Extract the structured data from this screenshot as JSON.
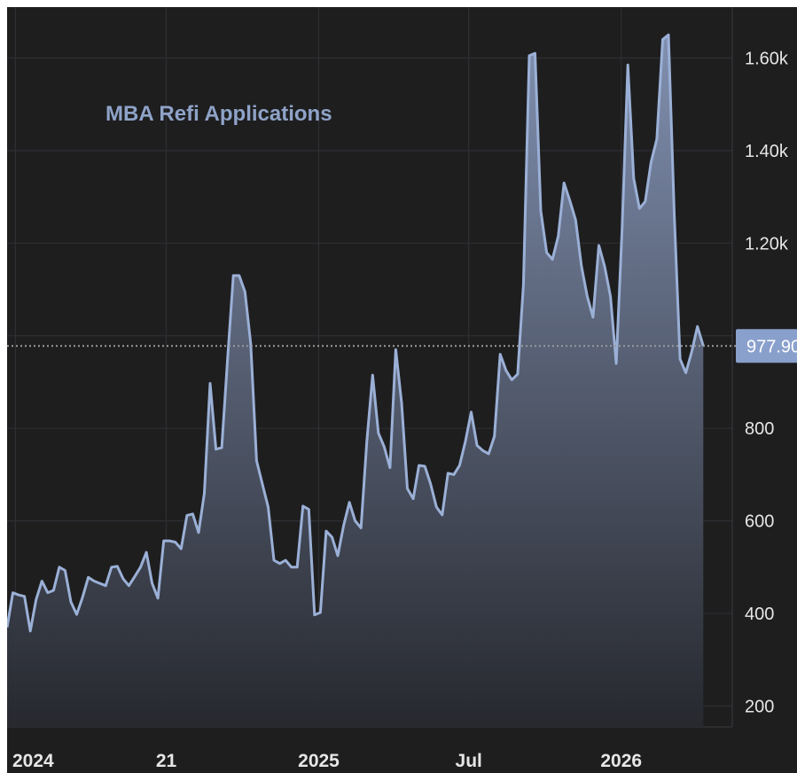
{
  "chart_data": {
    "type": "area",
    "title": "MBA Refi Applications",
    "xlabel": "",
    "ylabel": "",
    "x_range": [
      "2023-12-22",
      "2026-05-15"
    ],
    "ylim": [
      155,
      1710
    ],
    "y_ticks": [
      {
        "value": 200,
        "label": "200"
      },
      {
        "value": 400,
        "label": "400"
      },
      {
        "value": 600,
        "label": "600"
      },
      {
        "value": 800,
        "label": "800"
      },
      {
        "value": 1000,
        "label": ""
      },
      {
        "value": 1200,
        "label": "1.20k"
      },
      {
        "value": 1400,
        "label": "1.40k"
      },
      {
        "value": 1600,
        "label": "1.60k"
      }
    ],
    "x_ticks": [
      {
        "date": "2024-01-01",
        "label": "2024"
      },
      {
        "date": "2024-07-01",
        "label": "21"
      },
      {
        "date": "2025-01-01",
        "label": "2025"
      },
      {
        "date": "2025-07-01",
        "label": "Jul"
      },
      {
        "date": "2026-01-01",
        "label": "2026"
      }
    ],
    "grid": true,
    "last_value": 977.9,
    "last_value_label": "977.90",
    "line_color": "#9bb0d6",
    "fill_top_color": "#8696b8",
    "fill_bottom_color": "#27292f",
    "background": "#1e1e1f",
    "series": [
      {
        "points": [
          [
            "2023-12-22",
            370
          ],
          [
            "2023-12-29",
            445
          ],
          [
            "2024-01-05",
            440
          ],
          [
            "2024-01-12",
            437
          ],
          [
            "2024-01-19",
            362
          ],
          [
            "2024-01-26",
            430
          ],
          [
            "2024-02-02",
            470
          ],
          [
            "2024-02-09",
            445
          ],
          [
            "2024-02-16",
            450
          ],
          [
            "2024-02-23",
            500
          ],
          [
            "2024-03-01",
            493
          ],
          [
            "2024-03-08",
            425
          ],
          [
            "2024-03-15",
            398
          ],
          [
            "2024-03-22",
            435
          ],
          [
            "2024-03-29",
            478
          ],
          [
            "2024-04-05",
            470
          ],
          [
            "2024-04-12",
            465
          ],
          [
            "2024-04-19",
            460
          ],
          [
            "2024-04-26",
            500
          ],
          [
            "2024-05-03",
            502
          ],
          [
            "2024-05-10",
            475
          ],
          [
            "2024-05-17",
            460
          ],
          [
            "2024-05-24",
            480
          ],
          [
            "2024-05-31",
            500
          ],
          [
            "2024-06-07",
            532
          ],
          [
            "2024-06-14",
            465
          ],
          [
            "2024-06-21",
            433
          ],
          [
            "2024-06-28",
            557
          ],
          [
            "2024-07-05",
            557
          ],
          [
            "2024-07-12",
            554
          ],
          [
            "2024-07-19",
            540
          ],
          [
            "2024-07-26",
            612
          ],
          [
            "2024-08-02",
            615
          ],
          [
            "2024-08-09",
            575
          ],
          [
            "2024-08-16",
            660
          ],
          [
            "2024-08-23",
            897
          ],
          [
            "2024-08-30",
            755
          ],
          [
            "2024-09-06",
            758
          ],
          [
            "2024-09-13",
            950
          ],
          [
            "2024-09-20",
            1130
          ],
          [
            "2024-09-27",
            1130
          ],
          [
            "2024-10-04",
            1095
          ],
          [
            "2024-10-11",
            983
          ],
          [
            "2024-10-18",
            730
          ],
          [
            "2024-10-25",
            680
          ],
          [
            "2024-11-01",
            630
          ],
          [
            "2024-11-08",
            515
          ],
          [
            "2024-11-15",
            508
          ],
          [
            "2024-11-22",
            515
          ],
          [
            "2024-11-29",
            500
          ],
          [
            "2024-12-06",
            500
          ],
          [
            "2024-12-13",
            632
          ],
          [
            "2024-12-20",
            625
          ],
          [
            "2024-12-27",
            397
          ],
          [
            "2025-01-03",
            402
          ],
          [
            "2025-01-10",
            578
          ],
          [
            "2025-01-17",
            565
          ],
          [
            "2025-01-24",
            525
          ],
          [
            "2025-01-31",
            590
          ],
          [
            "2025-02-07",
            640
          ],
          [
            "2025-02-14",
            600
          ],
          [
            "2025-02-21",
            585
          ],
          [
            "2025-02-28",
            770
          ],
          [
            "2025-03-07",
            915
          ],
          [
            "2025-03-14",
            790
          ],
          [
            "2025-03-21",
            760
          ],
          [
            "2025-03-28",
            715
          ],
          [
            "2025-04-04",
            970
          ],
          [
            "2025-04-11",
            855
          ],
          [
            "2025-04-18",
            670
          ],
          [
            "2025-04-25",
            648
          ],
          [
            "2025-05-02",
            720
          ],
          [
            "2025-05-09",
            718
          ],
          [
            "2025-05-16",
            680
          ],
          [
            "2025-05-23",
            630
          ],
          [
            "2025-05-30",
            613
          ],
          [
            "2025-06-06",
            703
          ],
          [
            "2025-06-13",
            700
          ],
          [
            "2025-06-20",
            720
          ],
          [
            "2025-06-27",
            772
          ],
          [
            "2025-07-04",
            835
          ],
          [
            "2025-07-11",
            763
          ],
          [
            "2025-07-18",
            752
          ],
          [
            "2025-07-25",
            745
          ],
          [
            "2025-08-01",
            783
          ],
          [
            "2025-08-08",
            960
          ],
          [
            "2025-08-15",
            925
          ],
          [
            "2025-08-22",
            905
          ],
          [
            "2025-08-29",
            917
          ],
          [
            "2025-09-05",
            1110
          ],
          [
            "2025-09-12",
            1605
          ],
          [
            "2025-09-19",
            1610
          ],
          [
            "2025-09-26",
            1270
          ],
          [
            "2025-10-03",
            1180
          ],
          [
            "2025-10-10",
            1165
          ],
          [
            "2025-10-17",
            1215
          ],
          [
            "2025-10-24",
            1330
          ],
          [
            "2025-10-31",
            1292
          ],
          [
            "2025-11-07",
            1250
          ],
          [
            "2025-11-14",
            1150
          ],
          [
            "2025-11-21",
            1085
          ],
          [
            "2025-11-28",
            1040
          ],
          [
            "2025-12-05",
            1195
          ],
          [
            "2025-12-12",
            1150
          ],
          [
            "2025-12-19",
            1085
          ],
          [
            "2025-12-26",
            940
          ],
          [
            "2026-01-02",
            1230
          ],
          [
            "2026-01-09",
            1585
          ],
          [
            "2026-01-16",
            1340
          ],
          [
            "2026-01-23",
            1275
          ],
          [
            "2026-01-30",
            1290
          ],
          [
            "2026-02-06",
            1375
          ],
          [
            "2026-02-13",
            1425
          ],
          [
            "2026-02-20",
            1640
          ],
          [
            "2026-02-27",
            1650
          ],
          [
            "2026-03-06",
            1260
          ],
          [
            "2026-03-13",
            950
          ],
          [
            "2026-03-20",
            920
          ],
          [
            "2026-03-27",
            965
          ],
          [
            "2026-04-03",
            1020
          ],
          [
            "2026-04-10",
            977.9
          ]
        ]
      }
    ]
  }
}
